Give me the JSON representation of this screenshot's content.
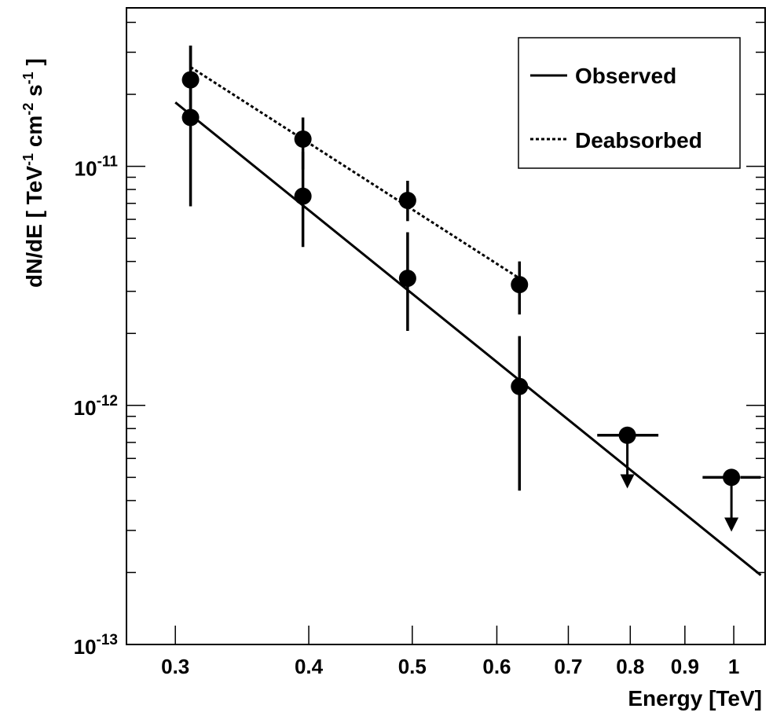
{
  "chart_data": {
    "type": "scatter",
    "xscale": "log",
    "yscale": "log",
    "xlim": [
      0.27,
      1.07
    ],
    "ylim": [
      1e-13,
      4.6e-11
    ],
    "xlabel": "Energy [TeV]",
    "ylabel": "dN/dE [ TeV",
    "ylabel_parts": {
      "main": "dN/dE [ TeV",
      "exp1": "-1",
      "mid": " cm",
      "exp2": "-2",
      "mid2": " s",
      "exp3": "-1",
      "end": " ]"
    },
    "x_ticks": [
      {
        "value": 0.3,
        "label": "0.3"
      },
      {
        "value": 0.4,
        "label": "0.4"
      },
      {
        "value": 0.5,
        "label": "0.5"
      },
      {
        "value": 0.6,
        "label": "0.6"
      },
      {
        "value": 0.7,
        "label": "0.7"
      },
      {
        "value": 0.8,
        "label": "0.8"
      },
      {
        "value": 0.9,
        "label": "0.9"
      },
      {
        "value": 1.0,
        "label": "1"
      }
    ],
    "y_ticks": [
      {
        "value": 1e-13,
        "base": "10",
        "exp": "-13"
      },
      {
        "value": 1e-12,
        "base": "10",
        "exp": "-12"
      },
      {
        "value": 1e-11,
        "base": "10",
        "exp": "-11"
      }
    ],
    "legend": {
      "position": "top-right",
      "entries": [
        {
          "label": "Observed",
          "style": "solid"
        },
        {
          "label": "Deabsorbed",
          "style": "dotted"
        }
      ]
    },
    "series": [
      {
        "name": "Observed",
        "points": [
          {
            "x": 0.31,
            "y": 1.6e-11,
            "ylo": 6.8e-12,
            "yhi": 3.2e-11
          },
          {
            "x": 0.395,
            "y": 7.5e-12,
            "ylo": 4.6e-12,
            "yhi": 1.15e-11
          },
          {
            "x": 0.495,
            "y": 3.4e-12,
            "ylo": 2.05e-12,
            "yhi": 5.3e-12
          },
          {
            "x": 0.63,
            "y": 1.2e-12,
            "ylo": 4.4e-13,
            "yhi": 1.95e-12
          }
        ],
        "fit": {
          "x": [
            0.3,
            1.06
          ],
          "y": [
            1.85e-11,
            1.95e-13
          ]
        }
      },
      {
        "name": "Deabsorbed",
        "points": [
          {
            "x": 0.31,
            "y": 2.3e-11,
            "ylo": 1.55e-11,
            "yhi": 3.2e-11
          },
          {
            "x": 0.395,
            "y": 1.3e-11,
            "ylo": 9.7e-12,
            "yhi": 1.6e-11
          },
          {
            "x": 0.495,
            "y": 7.2e-12,
            "ylo": 5.9e-12,
            "yhi": 8.7e-12
          },
          {
            "x": 0.63,
            "y": 3.2e-12,
            "ylo": 2.4e-12,
            "yhi": 4e-12
          }
        ],
        "fit": {
          "x": [
            0.31,
            0.63
          ],
          "y": [
            2.6e-11,
            3.4e-12
          ]
        }
      }
    ],
    "upper_limits": [
      {
        "x": 0.795,
        "y": 7.5e-13,
        "xlo": 0.745,
        "xhi": 0.85,
        "arrow_to": 4.7e-13
      },
      {
        "x": 0.995,
        "y": 5e-13,
        "xlo": 0.935,
        "xhi": 1.06,
        "arrow_to": 3.1e-13
      }
    ]
  }
}
